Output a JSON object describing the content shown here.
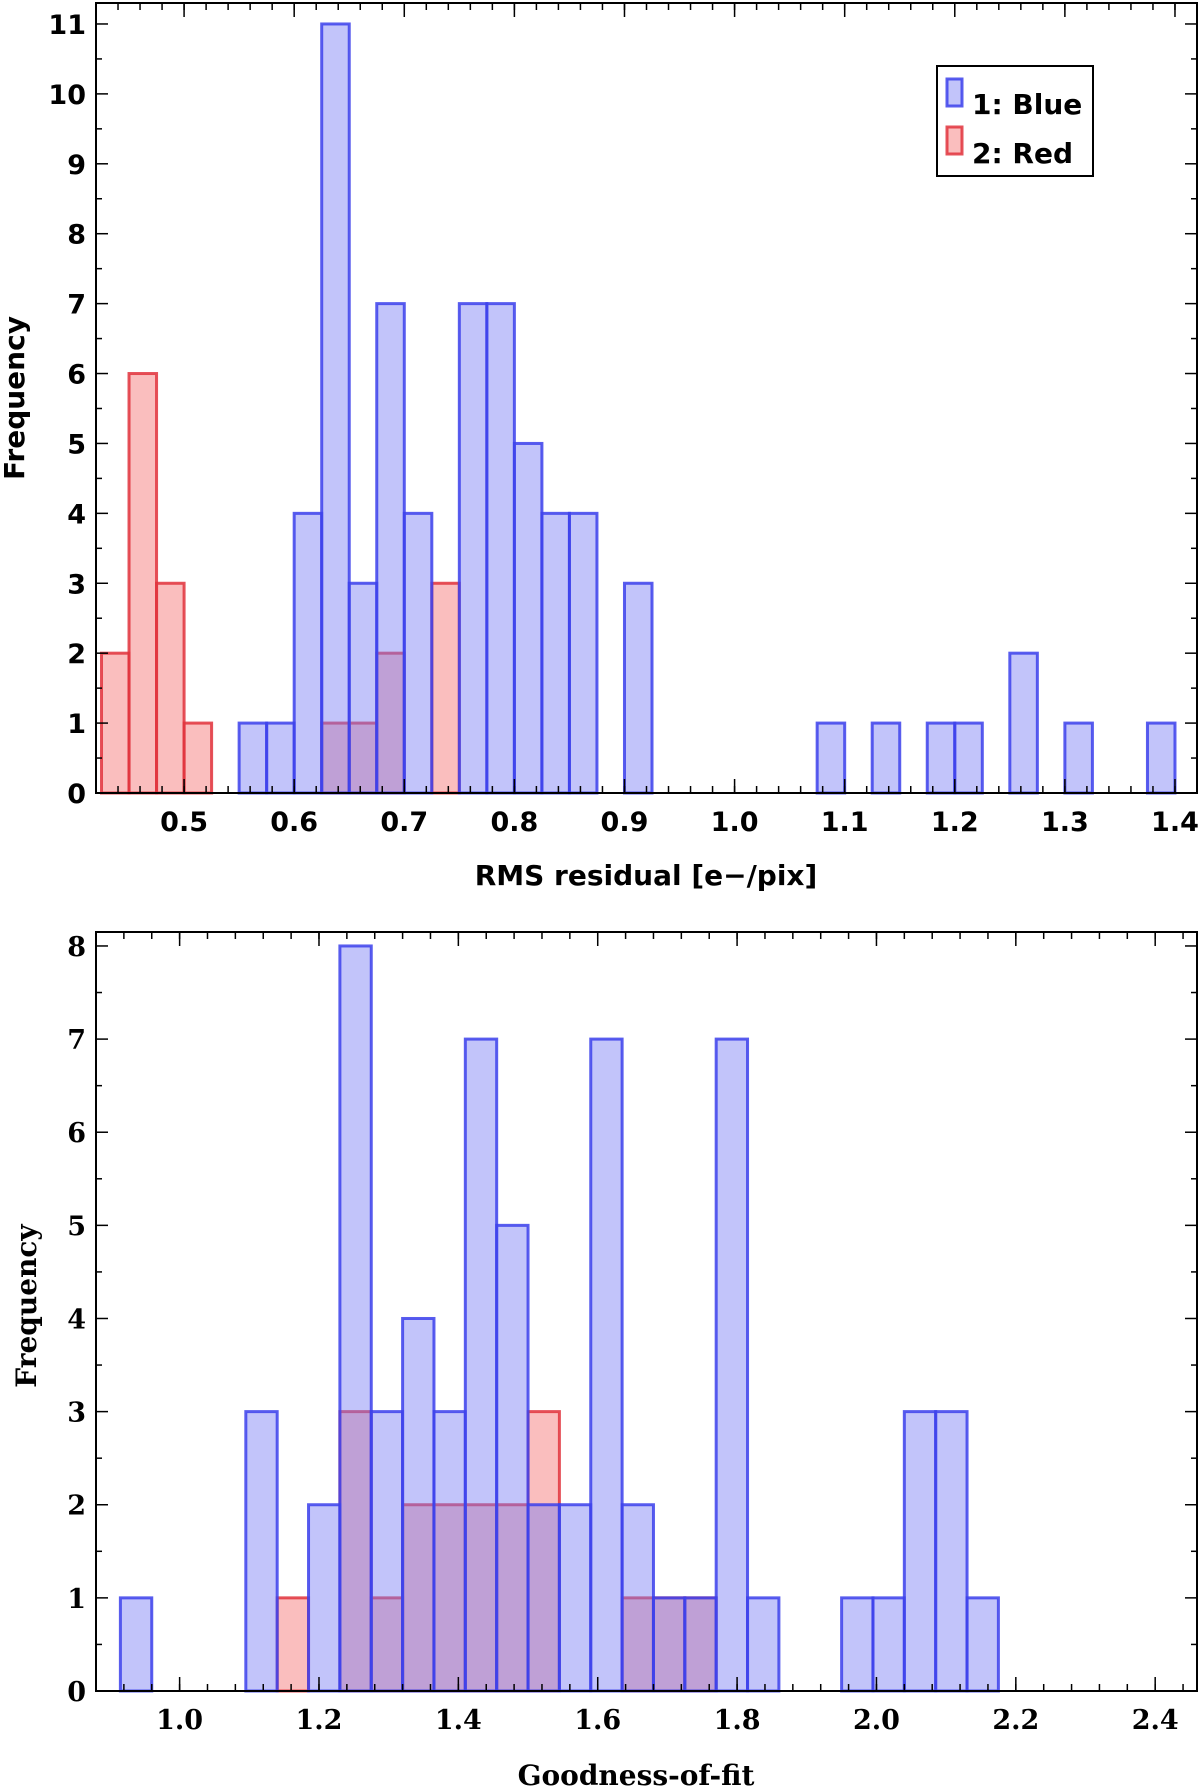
{
  "colors": {
    "blue": "#6d6ff2",
    "red": "#ef6a6a"
  },
  "chart_data": [
    {
      "type": "bar",
      "title": "",
      "xlabel": "RMS residual [e−/pix]",
      "ylabel": "Frequency",
      "xlim": [
        0.42,
        1.42
      ],
      "ylim": [
        0,
        11.3
      ],
      "bin_width": 0.025,
      "xticks": [
        "0.5",
        "0.6",
        "0.7",
        "0.8",
        "0.9",
        "1.0",
        "1.1",
        "1.2",
        "1.3",
        "1.4"
      ],
      "yticks": [
        "0",
        "1",
        "2",
        "3",
        "4",
        "5",
        "6",
        "7",
        "8",
        "9",
        "10",
        "11"
      ],
      "legend": {
        "position": "top-right",
        "entries": [
          {
            "label": "1: Blue",
            "color": "blue"
          },
          {
            "label": "2: Red",
            "color": "red"
          }
        ]
      },
      "series": [
        {
          "name": "1: Blue",
          "bins": [
            {
              "x0": 0.55,
              "x1": 0.575,
              "value": 1
            },
            {
              "x0": 0.575,
              "x1": 0.6,
              "value": 1
            },
            {
              "x0": 0.6,
              "x1": 0.625,
              "value": 4
            },
            {
              "x0": 0.625,
              "x1": 0.65,
              "value": 11
            },
            {
              "x0": 0.65,
              "x1": 0.675,
              "value": 3
            },
            {
              "x0": 0.675,
              "x1": 0.7,
              "value": 7
            },
            {
              "x0": 0.7,
              "x1": 0.725,
              "value": 4
            },
            {
              "x0": 0.75,
              "x1": 0.775,
              "value": 7
            },
            {
              "x0": 0.775,
              "x1": 0.8,
              "value": 7
            },
            {
              "x0": 0.8,
              "x1": 0.825,
              "value": 5
            },
            {
              "x0": 0.825,
              "x1": 0.85,
              "value": 4
            },
            {
              "x0": 0.85,
              "x1": 0.875,
              "value": 4
            },
            {
              "x0": 0.9,
              "x1": 0.925,
              "value": 3
            },
            {
              "x0": 1.075,
              "x1": 1.1,
              "value": 1
            },
            {
              "x0": 1.125,
              "x1": 1.15,
              "value": 1
            },
            {
              "x0": 1.175,
              "x1": 1.2,
              "value": 1
            },
            {
              "x0": 1.2,
              "x1": 1.225,
              "value": 1
            },
            {
              "x0": 1.25,
              "x1": 1.275,
              "value": 2
            },
            {
              "x0": 1.3,
              "x1": 1.325,
              "value": 1
            },
            {
              "x0": 1.375,
              "x1": 1.4,
              "value": 1
            }
          ]
        },
        {
          "name": "2: Red",
          "bins": [
            {
              "x0": 0.425,
              "x1": 0.45,
              "value": 2
            },
            {
              "x0": 0.45,
              "x1": 0.475,
              "value": 6
            },
            {
              "x0": 0.475,
              "x1": 0.5,
              "value": 3
            },
            {
              "x0": 0.5,
              "x1": 0.525,
              "value": 1
            },
            {
              "x0": 0.625,
              "x1": 0.65,
              "value": 1
            },
            {
              "x0": 0.65,
              "x1": 0.675,
              "value": 1
            },
            {
              "x0": 0.675,
              "x1": 0.7,
              "value": 2
            },
            {
              "x0": 0.725,
              "x1": 0.75,
              "value": 3
            }
          ]
        }
      ]
    },
    {
      "type": "bar",
      "title": "",
      "xlabel": "Goodness-of-fit",
      "ylabel": "Frequency",
      "xlim": [
        0.88,
        2.46
      ],
      "ylim": [
        0,
        8.15
      ],
      "bin_width": 0.045,
      "xticks": [
        "1.0",
        "1.2",
        "1.4",
        "1.6",
        "1.8",
        "2.0",
        "2.2",
        "2.4"
      ],
      "yticks": [
        "0",
        "1",
        "2",
        "3",
        "4",
        "5",
        "6",
        "7",
        "8"
      ],
      "series": [
        {
          "name": "1: Blue",
          "bins": [
            {
              "x0": 0.915,
              "x1": 0.96,
              "value": 1
            },
            {
              "x0": 1.095,
              "x1": 1.14,
              "value": 3
            },
            {
              "x0": 1.185,
              "x1": 1.23,
              "value": 2
            },
            {
              "x0": 1.23,
              "x1": 1.275,
              "value": 8
            },
            {
              "x0": 1.275,
              "x1": 1.32,
              "value": 3
            },
            {
              "x0": 1.32,
              "x1": 1.365,
              "value": 4
            },
            {
              "x0": 1.365,
              "x1": 1.41,
              "value": 3
            },
            {
              "x0": 1.41,
              "x1": 1.455,
              "value": 7
            },
            {
              "x0": 1.455,
              "x1": 1.5,
              "value": 5
            },
            {
              "x0": 1.5,
              "x1": 1.545,
              "value": 2
            },
            {
              "x0": 1.545,
              "x1": 1.59,
              "value": 2
            },
            {
              "x0": 1.59,
              "x1": 1.635,
              "value": 7
            },
            {
              "x0": 1.635,
              "x1": 1.68,
              "value": 2
            },
            {
              "x0": 1.68,
              "x1": 1.725,
              "value": 1
            },
            {
              "x0": 1.725,
              "x1": 1.77,
              "value": 1
            },
            {
              "x0": 1.77,
              "x1": 1.815,
              "value": 7
            },
            {
              "x0": 1.815,
              "x1": 1.86,
              "value": 1
            },
            {
              "x0": 1.95,
              "x1": 1.995,
              "value": 1
            },
            {
              "x0": 1.995,
              "x1": 2.04,
              "value": 1
            },
            {
              "x0": 2.04,
              "x1": 2.085,
              "value": 3
            },
            {
              "x0": 2.085,
              "x1": 2.13,
              "value": 3
            },
            {
              "x0": 2.13,
              "x1": 2.175,
              "value": 1
            }
          ]
        },
        {
          "name": "2: Red",
          "bins": [
            {
              "x0": 1.14,
              "x1": 1.185,
              "value": 1
            },
            {
              "x0": 1.23,
              "x1": 1.275,
              "value": 3
            },
            {
              "x0": 1.275,
              "x1": 1.32,
              "value": 1
            },
            {
              "x0": 1.32,
              "x1": 1.365,
              "value": 2
            },
            {
              "x0": 1.365,
              "x1": 1.41,
              "value": 2
            },
            {
              "x0": 1.41,
              "x1": 1.455,
              "value": 2
            },
            {
              "x0": 1.455,
              "x1": 1.5,
              "value": 2
            },
            {
              "x0": 1.5,
              "x1": 1.545,
              "value": 3
            },
            {
              "x0": 1.635,
              "x1": 1.68,
              "value": 1
            },
            {
              "x0": 1.68,
              "x1": 1.725,
              "value": 1
            },
            {
              "x0": 1.725,
              "x1": 1.77,
              "value": 1
            }
          ]
        }
      ]
    }
  ]
}
